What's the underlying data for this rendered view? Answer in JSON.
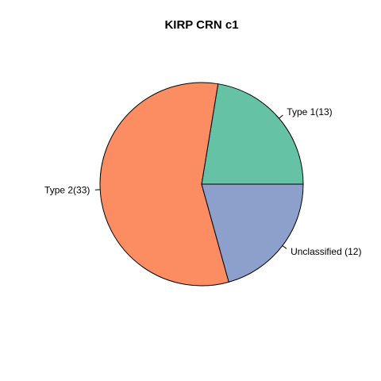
{
  "chart_data": {
    "type": "pie",
    "title": "KIRP CRN c1",
    "slices": [
      {
        "label": "Type 1(13)",
        "value": 13,
        "color": "#66c2a5"
      },
      {
        "label": "Type 2(33)",
        "value": 33,
        "color": "#fc8d62"
      },
      {
        "label": "Unclassified (12)",
        "value": 12,
        "color": "#8da0cb"
      }
    ],
    "start_angle_deg": 0,
    "direction": "counterclockwise"
  }
}
